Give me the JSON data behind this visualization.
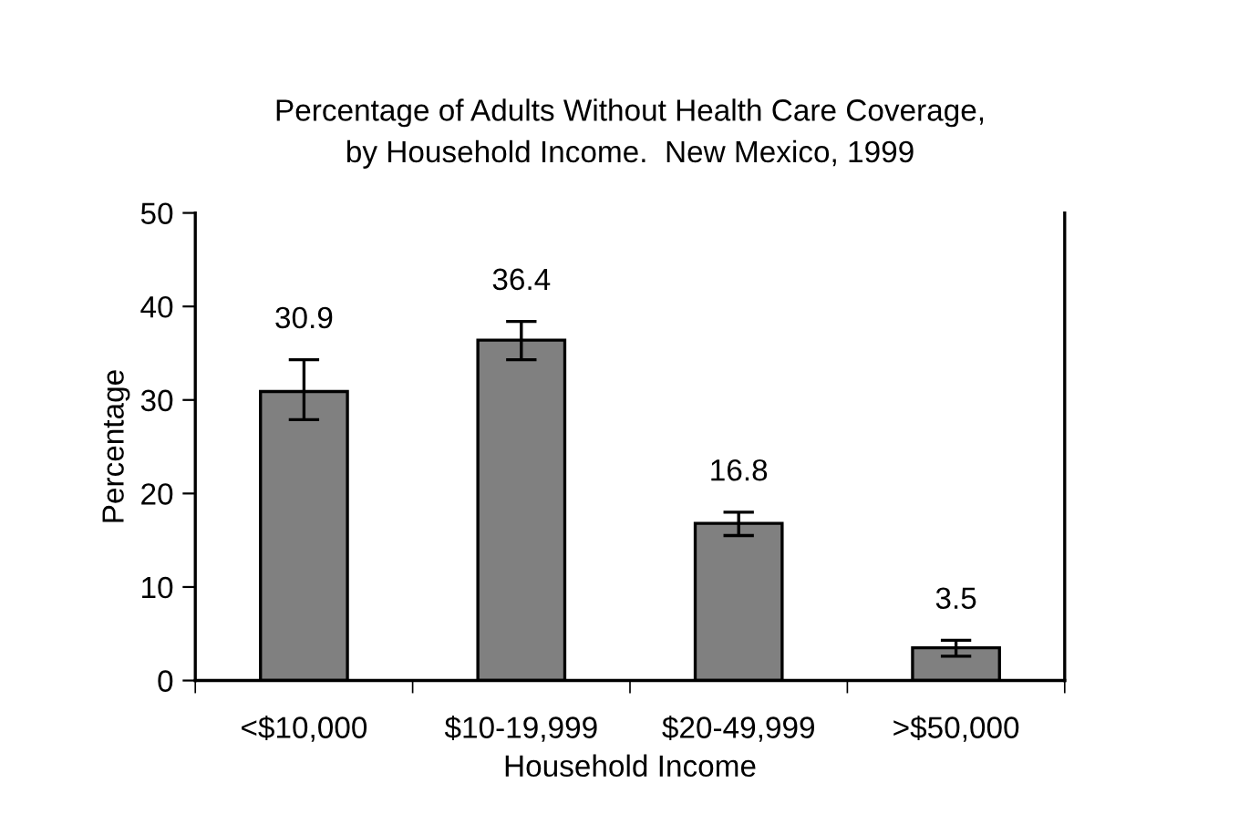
{
  "chart_data": {
    "type": "bar",
    "title": "Percentage of Adults Without Health Care Coverage,\nby Household Income.  New Mexico, 1999",
    "xlabel": "Household Income",
    "ylabel": "Percentage",
    "categories": [
      "<$10,000",
      "$10-19,999",
      "$20-49,999",
      ">$50,000"
    ],
    "values": [
      30.9,
      36.4,
      16.8,
      3.5
    ],
    "errors": [
      [
        27.9,
        34.3
      ],
      [
        34.3,
        38.4
      ],
      [
        15.5,
        18.0
      ],
      [
        2.6,
        4.3
      ]
    ],
    "color": "#808080",
    "data_labels": true,
    "grid": false,
    "legend": false,
    "ylim": [
      0,
      50
    ],
    "yticks": [
      0,
      10,
      20,
      30,
      40,
      50
    ]
  }
}
